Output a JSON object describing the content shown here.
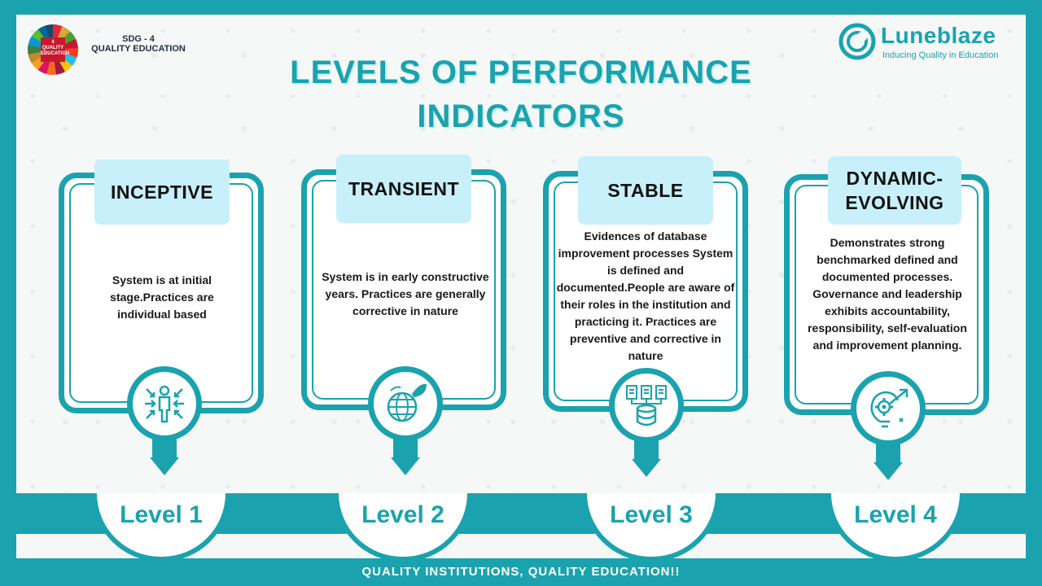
{
  "sdg": {
    "badge_text": "4 QUALITY EDUCATION",
    "line1": "SDG - 4",
    "line2": "QUALITY EDUCATION"
  },
  "brand": {
    "name": "Luneblaze",
    "tagline": "Inducing Quality in Education"
  },
  "title": {
    "line1": "LEVELS OF PERFORMANCE",
    "line2": "INDICATORS"
  },
  "cards": [
    {
      "label": "INCEPTIVE",
      "description": "System is at initial stage.Practices are individual based",
      "icon": "person-arrows-icon",
      "level": "Level 1"
    },
    {
      "label": "TRANSIENT",
      "description": "System is in early constructive years. Practices are generally corrective in nature",
      "icon": "globe-leaf-icon",
      "level": "Level 2"
    },
    {
      "label": "STABLE",
      "description": "Evidences of database improvement processes System is defined and documented.People are aware of their roles in the institution and practicing it. Practices are preventive and corrective in nature",
      "icon": "documents-database-icon",
      "level": "Level 3"
    },
    {
      "label": "DYNAMIC-EVOLVING",
      "label_line1": "DYNAMIC-",
      "label_line2": "EVOLVING",
      "description": "Demonstrates strong benchmarked defined and documented processes. Governance and leadership exhibits accountability, responsibility, self-evaluation and improvement planning.",
      "icon": "bulb-gear-arrow-icon",
      "level": "Level 4"
    }
  ],
  "footer": "QUALITY INSTITUTIONS, QUALITY EDUCATION!!",
  "colors": {
    "accent": "#1aa3ae",
    "label_bg": "#c7f0fb",
    "background": "#f6f8f8"
  }
}
